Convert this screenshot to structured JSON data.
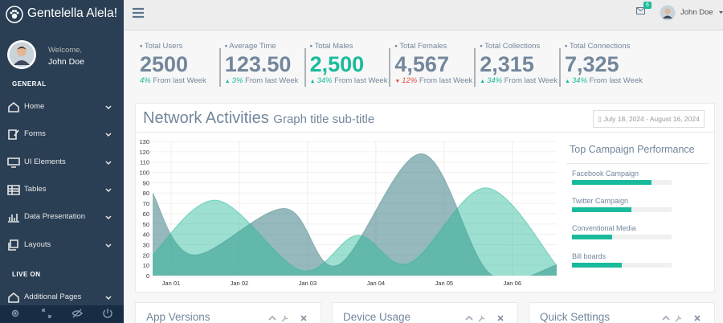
{
  "sidebar": {
    "brand": "Gentelella Alela!",
    "welcome": "Welcome,",
    "user": "John Doe",
    "sections": [
      {
        "title": "GENERAL",
        "items": [
          "Home",
          "Forms",
          "UI Elements",
          "Tables",
          "Data Presentation",
          "Layouts"
        ]
      },
      {
        "title": "LIVE ON",
        "items": [
          "Additional Pages"
        ]
      }
    ]
  },
  "topbar": {
    "badge": 6,
    "user": "John Doe"
  },
  "stats": [
    {
      "label": "Total Users",
      "value": "2500",
      "change": "4%",
      "note": "From last Week"
    },
    {
      "label": "Average Time",
      "value": "123.50",
      "change": "3%",
      "note": "From last Week",
      "trend": "up"
    },
    {
      "label": "Total Males",
      "value": "2,500",
      "change": "34%",
      "note": "From last Week",
      "trend": "up",
      "highlight": true
    },
    {
      "label": "Total Females",
      "value": "4,567",
      "change": "12%",
      "note": "From last Week",
      "trend": "down"
    },
    {
      "label": "Total Collections",
      "value": "2,315",
      "change": "34%",
      "note": "From last Week",
      "trend": "up"
    },
    {
      "label": "Total Connections",
      "value": "7,325",
      "change": "34%",
      "note": "From last Week",
      "trend": "up"
    }
  ],
  "chart_data": {
    "type": "area",
    "title": "Network Activities",
    "subtitle": "Graph title sub-title",
    "date_range": "July 18, 2024 - August 16, 2024",
    "xlim": [
      0.73,
      6.65
    ],
    "xticks": [
      {
        "value": 1,
        "label": "Jan 01"
      },
      {
        "value": 2,
        "label": "Jan 02"
      },
      {
        "value": 3,
        "label": "Jan 03"
      },
      {
        "value": 4,
        "label": "Jan 04"
      },
      {
        "value": 5,
        "label": "Jan 05"
      },
      {
        "value": 6,
        "label": "Jan 06"
      }
    ],
    "ylim": [
      0,
      130
    ],
    "yticks": [
      0,
      10,
      20,
      30,
      40,
      50,
      60,
      70,
      80,
      90,
      100,
      110,
      120,
      130
    ],
    "grid": true,
    "series": [
      {
        "color": "#4f8a90",
        "x": [
          0.73,
          1.32,
          2.67,
          3.44,
          4.67,
          5.67,
          6.65
        ],
        "values": [
          80,
          20,
          65,
          10,
          118,
          2,
          10
        ]
      },
      {
        "color": "#26b99a",
        "x": [
          0.73,
          1.67,
          2.91,
          3.73,
          4.49,
          5.61,
          6.65
        ],
        "values": [
          20,
          73,
          5,
          39,
          12,
          85,
          10
        ]
      }
    ]
  },
  "campaigns": {
    "title": "Top Campaign Performance",
    "items": [
      {
        "name": "Facebook Campaign",
        "value": 80
      },
      {
        "name": "Twitter Campaign",
        "value": 60
      },
      {
        "name": "Conventional Media",
        "value": 40
      },
      {
        "name": "Bill boards",
        "value": 50
      }
    ]
  },
  "panels": [
    "App Versions",
    "Device Usage",
    "Quick Settings"
  ]
}
